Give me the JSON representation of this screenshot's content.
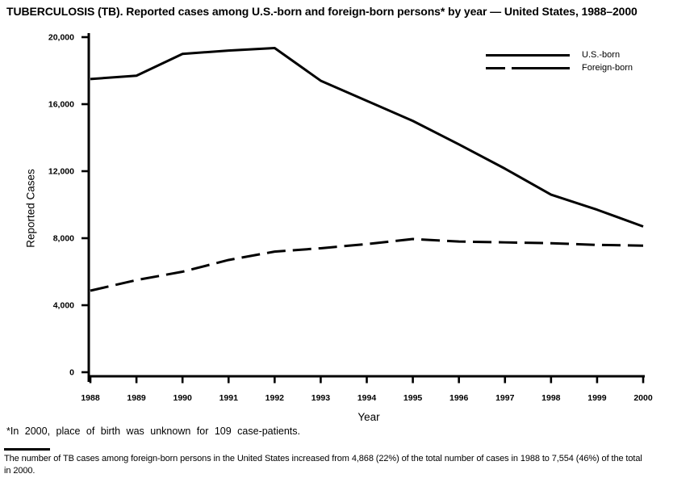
{
  "title": "TUBERCULOSIS (TB). Reported cases among U.S.-born and foreign-born persons* by year — United States, 1988–2000",
  "chart_data": {
    "type": "line",
    "x": [
      1988,
      1989,
      1990,
      1991,
      1992,
      1993,
      1994,
      1995,
      1996,
      1997,
      1998,
      1999,
      2000
    ],
    "series": [
      {
        "name": "U.S.-born",
        "line_style": "solid",
        "values": [
          17500,
          17700,
          19000,
          19200,
          19350,
          17400,
          16200,
          15000,
          13600,
          12150,
          10600,
          9700,
          8700
        ]
      },
      {
        "name": "Foreign-born",
        "line_style": "dashed",
        "values": [
          4868,
          5500,
          6000,
          6700,
          7200,
          7400,
          7650,
          7950,
          7800,
          7750,
          7700,
          7600,
          7554
        ]
      }
    ],
    "xlabel": "Year",
    "ylabel": "Reported Cases",
    "ylim": [
      0,
      20000
    ],
    "yticks": [
      0,
      4000,
      8000,
      12000,
      16000,
      20000
    ],
    "ytick_labels": [
      "0",
      "4,000",
      "8,000",
      "12,000",
      "16,000",
      "20,000"
    ],
    "legend_position": "top-right",
    "grid": false,
    "line_color": "#000000",
    "background": "#ffffff"
  },
  "legend": {
    "items": [
      {
        "label": "U.S.-born",
        "line_style": "solid"
      },
      {
        "label": "Foreign-born",
        "line_style": "dashed"
      }
    ]
  },
  "footnotes": {
    "note1": "*In 2000, place of birth was unknown for 109 case-patients.",
    "note2_line1": "The number of TB cases among foreign-born persons in the United States increased from 4,868 (22%) of the total number of cases in 1988 to 7,554 (46%) of the total",
    "note2_line2": "in 2000."
  }
}
